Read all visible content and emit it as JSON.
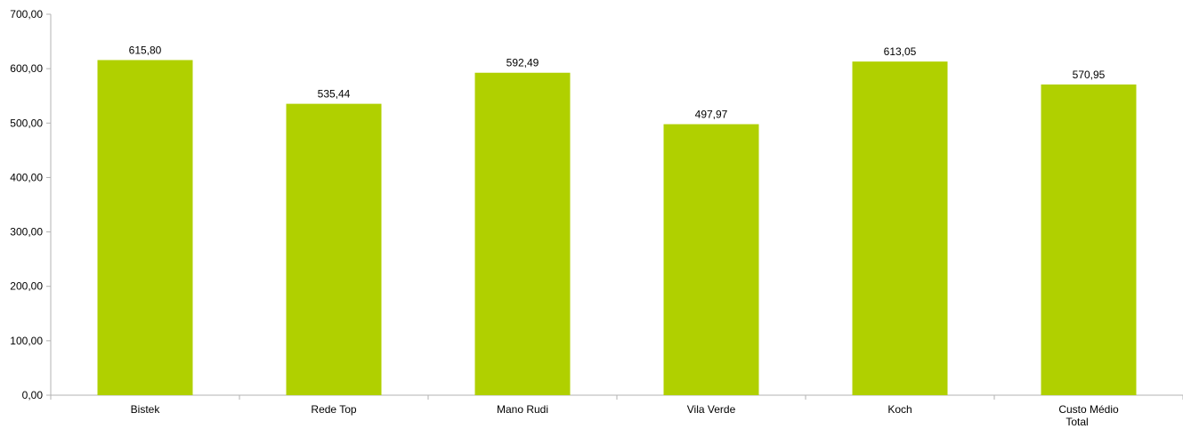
{
  "chart_data": {
    "type": "bar",
    "categories": [
      [
        "Bistek"
      ],
      [
        "Rede Top"
      ],
      [
        "Mano Rudi"
      ],
      [
        "Vila Verde"
      ],
      [
        "Koch"
      ],
      [
        "Custo Médio",
        "Total"
      ]
    ],
    "values": [
      615.8,
      535.44,
      592.49,
      497.97,
      613.05,
      570.95
    ],
    "data_labels": [
      "615,80",
      "535,44",
      "592,49",
      "497,97",
      "613,05",
      "570,95"
    ],
    "ylim": [
      0,
      700
    ],
    "y_ticks": [
      0,
      100,
      200,
      300,
      400,
      500,
      600,
      700
    ],
    "y_tick_labels": [
      "0,00",
      "100,00",
      "200,00",
      "300,00",
      "400,00",
      "500,00",
      "600,00",
      "700,00"
    ],
    "title": "",
    "xlabel": "",
    "ylabel": "",
    "grid": false,
    "legend": "none",
    "colors": {
      "bar": "#b0d000",
      "axis": "#b3b3b3",
      "text": "#000000"
    }
  }
}
